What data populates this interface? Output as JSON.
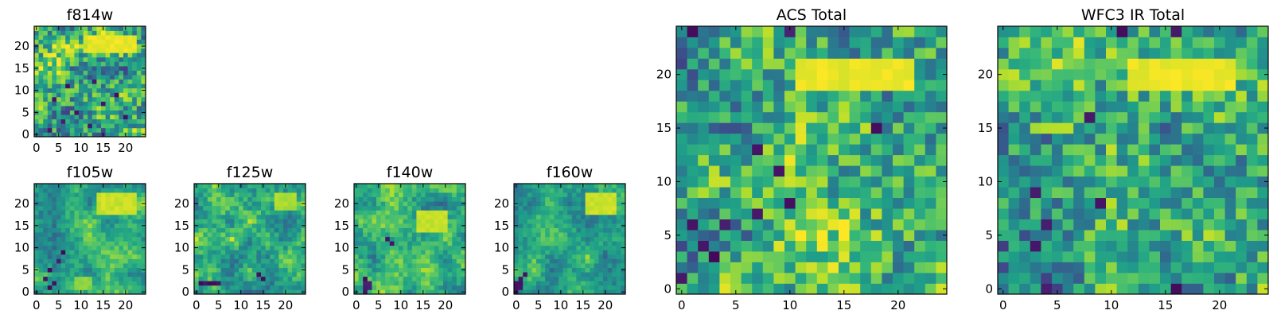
{
  "colormap": "viridis",
  "chart_data": [
    {
      "type": "heatmap",
      "title": "f814w",
      "xlim": [
        -0.5,
        24.5
      ],
      "ylim": [
        -0.5,
        24.5
      ],
      "xticks": [
        0,
        5,
        10,
        15,
        20
      ],
      "yticks": [
        0,
        5,
        10,
        15,
        20
      ],
      "grid_size": [
        25,
        25
      ],
      "pattern_seed": 11,
      "coarse": 5,
      "noise": 0.55,
      "dark_pixels": [
        [
          3,
          1
        ],
        [
          12,
          2
        ],
        [
          6,
          3
        ],
        [
          20,
          4
        ],
        [
          9,
          5
        ],
        [
          15,
          7
        ],
        [
          4,
          8
        ],
        [
          18,
          9
        ],
        [
          7,
          11
        ],
        [
          13,
          12
        ]
      ],
      "bright_regions": [
        {
          "x": [
            12,
            22
          ],
          "y": [
            19,
            22
          ],
          "level": 1.0
        }
      ]
    },
    {
      "type": "heatmap",
      "title": "f105w",
      "xlim": [
        -0.5,
        24.5
      ],
      "ylim": [
        -0.5,
        24.5
      ],
      "xticks": [
        0,
        5,
        10,
        15,
        20
      ],
      "yticks": [
        0,
        5,
        10,
        15,
        20
      ],
      "grid_size": [
        25,
        25
      ],
      "pattern_seed": 23,
      "coarse": 4,
      "noise": 0.2,
      "dark_pixels": [
        [
          3,
          1
        ],
        [
          4,
          2
        ],
        [
          3,
          5
        ],
        [
          5,
          7
        ],
        [
          2,
          3
        ],
        [
          6,
          9
        ]
      ],
      "bright_regions": [
        {
          "x": [
            14,
            22
          ],
          "y": [
            18,
            22
          ],
          "level": 0.95
        },
        {
          "x": [
            9,
            12
          ],
          "y": [
            1,
            3
          ],
          "level": 0.85
        }
      ]
    },
    {
      "type": "heatmap",
      "title": "f125w",
      "xlim": [
        -0.5,
        24.5
      ],
      "ylim": [
        -0.5,
        24.5
      ],
      "xticks": [
        0,
        5,
        10,
        15,
        20
      ],
      "yticks": [
        0,
        5,
        10,
        15,
        20
      ],
      "grid_size": [
        25,
        25
      ],
      "pattern_seed": 37,
      "coarse": 4,
      "noise": 0.25,
      "dark_pixels": [
        [
          1,
          2
        ],
        [
          2,
          2
        ],
        [
          3,
          2
        ],
        [
          4,
          2
        ],
        [
          5,
          2
        ],
        [
          14,
          4
        ],
        [
          15,
          3
        ]
      ],
      "bright_regions": [
        {
          "x": [
            18,
            22
          ],
          "y": [
            19,
            22
          ],
          "level": 0.9
        }
      ]
    },
    {
      "type": "heatmap",
      "title": "f140w",
      "xlim": [
        -0.5,
        24.5
      ],
      "ylim": [
        -0.5,
        24.5
      ],
      "xticks": [
        0,
        5,
        10,
        15,
        20
      ],
      "yticks": [
        0,
        5,
        10,
        15,
        20
      ],
      "grid_size": [
        25,
        25
      ],
      "pattern_seed": 41,
      "coarse": 4,
      "noise": 0.22,
      "dark_pixels": [
        [
          2,
          0
        ],
        [
          2,
          1
        ],
        [
          3,
          1
        ],
        [
          2,
          2
        ],
        [
          3,
          2
        ],
        [
          2,
          3
        ],
        [
          7,
          12
        ],
        [
          8,
          11
        ]
      ],
      "bright_regions": [
        {
          "x": [
            14,
            20
          ],
          "y": [
            14,
            18
          ],
          "level": 0.95
        }
      ]
    },
    {
      "type": "heatmap",
      "title": "f160w",
      "xlim": [
        -0.5,
        24.5
      ],
      "ylim": [
        -0.5,
        24.5
      ],
      "xticks": [
        0,
        5,
        10,
        15,
        20
      ],
      "yticks": [
        0,
        5,
        10,
        15,
        20
      ],
      "grid_size": [
        25,
        25
      ],
      "pattern_seed": 53,
      "coarse": 4,
      "noise": 0.2,
      "dark_pixels": [
        [
          0,
          0
        ],
        [
          0,
          1
        ],
        [
          1,
          1
        ],
        [
          0,
          2
        ],
        [
          1,
          2
        ],
        [
          1,
          3
        ],
        [
          2,
          4
        ]
      ],
      "bright_regions": [
        {
          "x": [
            16,
            22
          ],
          "y": [
            18,
            22
          ],
          "level": 0.95
        }
      ]
    },
    {
      "type": "heatmap",
      "title": "ACS Total",
      "xlim": [
        -0.5,
        24.5
      ],
      "ylim": [
        -0.5,
        24.5
      ],
      "xticks": [
        0,
        5,
        10,
        15,
        20
      ],
      "yticks": [
        0,
        5,
        10,
        15,
        20
      ],
      "grid_size": [
        25,
        25
      ],
      "pattern_seed": 7,
      "coarse": 5,
      "noise": 0.5,
      "dark_pixels": [
        [
          1,
          24
        ],
        [
          10,
          24
        ],
        [
          18,
          15
        ],
        [
          7,
          13
        ],
        [
          9,
          11
        ],
        [
          10,
          8
        ],
        [
          7,
          7
        ],
        [
          1,
          6
        ],
        [
          4,
          6
        ],
        [
          2,
          4
        ],
        [
          3,
          3
        ],
        [
          0,
          1
        ]
      ],
      "bright_regions": [
        {
          "x": [
            11,
            21
          ],
          "y": [
            19,
            21
          ],
          "level": 1.0
        }
      ]
    },
    {
      "type": "heatmap",
      "title": "WFC3 IR Total",
      "xlim": [
        -0.5,
        24.5
      ],
      "ylim": [
        -0.5,
        24.5
      ],
      "xticks": [
        0,
        5,
        10,
        15,
        20
      ],
      "yticks": [
        0,
        5,
        10,
        15,
        20
      ],
      "grid_size": [
        25,
        25
      ],
      "pattern_seed": 19,
      "coarse": 5,
      "noise": 0.5,
      "dark_pixels": [
        [
          11,
          24
        ],
        [
          16,
          24
        ],
        [
          8,
          16
        ],
        [
          3,
          9
        ],
        [
          9,
          8
        ],
        [
          4,
          6
        ],
        [
          3,
          4
        ],
        [
          4,
          0
        ],
        [
          16,
          0
        ]
      ],
      "bright_regions": [
        {
          "x": [
            12,
            21
          ],
          "y": [
            19,
            21
          ],
          "level": 1.0
        },
        {
          "x": [
            3,
            6
          ],
          "y": [
            15,
            15
          ],
          "level": 0.9
        }
      ]
    }
  ]
}
